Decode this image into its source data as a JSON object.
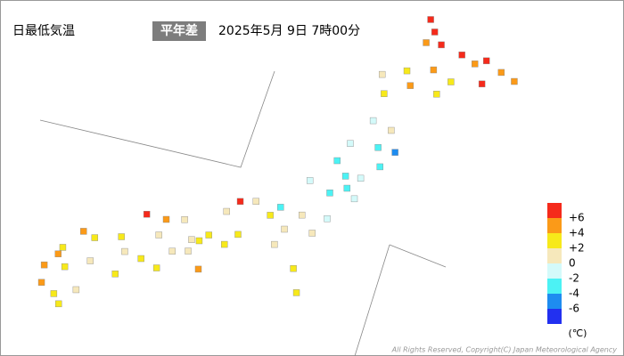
{
  "header": {
    "title": "日最低気温",
    "badge": "平年差",
    "datetime": "2025年5月 9日 7時00分"
  },
  "legend": {
    "colors": [
      "#f52a1b",
      "#fb9a18",
      "#f7e91a",
      "#f6e8bb",
      "#d4fafa",
      "#4cf2f4",
      "#1e8cf0",
      "#2230f0"
    ],
    "ticks": [
      {
        "value": 6,
        "label": "+6"
      },
      {
        "value": 4,
        "label": "+4"
      },
      {
        "value": 2,
        "label": "+2"
      },
      0,
      -2,
      -4,
      -6
    ],
    "unit": "(℃)"
  },
  "stations": {
    "lon": [
      141.7,
      142.0,
      141.8,
      142.4,
      143.3,
      144.3,
      145.0,
      145.6,
      144.4,
      143.2,
      142.4,
      141.4,
      140.8,
      141.7,
      142.8,
      140.5,
      143.9,
      140.7,
      141.5,
      140.1,
      141.2,
      140.3,
      140.9,
      141.5,
      139.8,
      140.5,
      140.9,
      139.9,
      141.9,
      139.0,
      138.2,
      139.7,
      140.1,
      139.1,
      138.6,
      137.2,
      136.2,
      136.9,
      138.4,
      137.9,
      136.6,
      135.8,
      135.5,
      135.2,
      136.5,
      135.2,
      135.8,
      134.0,
      133.2,
      134.7,
      133.9,
      132.5,
      131.5,
      131.0,
      133.5,
      132.8,
      134.6,
      132.7,
      134.2,
      130.4,
      129.9,
      130.7,
      131.6,
      131.4,
      130.6,
      130.3,
      130.9,
      130.0,
      139.4,
      139.8
    ],
    "lat": [
      45.4,
      44.9,
      44.4,
      44.4,
      44.1,
      44.0,
      43.6,
      43.3,
      43.0,
      42.9,
      43.3,
      43.1,
      42.0,
      42.5,
      42.3,
      42.8,
      43.8,
      40.8,
      40.5,
      39.7,
      39.7,
      38.3,
      38.3,
      38.9,
      38.9,
      37.8,
      37.4,
      37.5,
      39.6,
      37.9,
      36.6,
      35.7,
      36.4,
      36.4,
      35.7,
      36.7,
      36.1,
      35.2,
      35.0,
      36.2,
      36.6,
      35.0,
      34.7,
      34.7,
      34.7,
      34.2,
      33.5,
      35.4,
      35.5,
      35.5,
      34.7,
      34.4,
      34.2,
      34.4,
      33.6,
      33.8,
      34.1,
      32.8,
      33.3,
      33.6,
      32.75,
      32.8,
      33.2,
      31.9,
      31.6,
      33.3,
      31.2,
      32.0,
      34.1,
      33.1
    ],
    "values": [
      6.5,
      6.2,
      5.0,
      6.8,
      6.0,
      6.3,
      4.5,
      5.0,
      6.8,
      3.5,
      4.8,
      3.0,
      2.5,
      4.2,
      3.8,
      1.2,
      5.5,
      -1.0,
      0.5,
      -0.8,
      -2.5,
      -2.8,
      -1.5,
      -3.0,
      -2.2,
      -2.6,
      -1.2,
      -3.4,
      -4.2,
      -0.5,
      -2.1,
      0.8,
      -0.5,
      0.3,
      1.4,
      1.2,
      0.6,
      3.0,
      1.8,
      2.5,
      6.5,
      2.2,
      3.4,
      1.6,
      2.8,
      1.5,
      4.5,
      4.8,
      6.2,
      0.8,
      1.5,
      2.6,
      3.2,
      4.2,
      2.3,
      1.8,
      0.5,
      3.0,
      3.6,
      3.8,
      4.4,
      2.6,
      1.2,
      1.8,
      3.1,
      5.0,
      2.4,
      4.6,
      3.0,
      2.5
    ]
  },
  "footer": {
    "copyright": "All Rights Reserved, Copyright(C) Japan Meteorological Agency"
  }
}
